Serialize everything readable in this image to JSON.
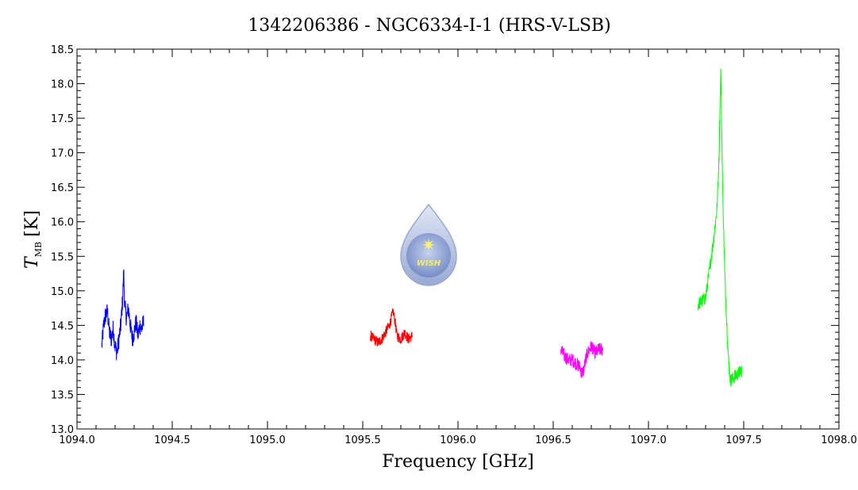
{
  "chart_data": {
    "type": "line",
    "title": "1342206386 - NGC6334-I-1 (HRS-V-LSB)",
    "xlabel": "Frequency [GHz]",
    "ylabel_main": "T",
    "ylabel_sub": "MB",
    "ylabel_unit": "[K]",
    "xlim": [
      1094.0,
      1098.0
    ],
    "ylim": [
      13.0,
      18.5
    ],
    "xticks": [
      "1094.0",
      "1094.5",
      "1095.0",
      "1095.5",
      "1096.0",
      "1096.5",
      "1097.0",
      "1097.5",
      "1098.0"
    ],
    "yticks": [
      "13.0",
      "13.5",
      "14.0",
      "14.5",
      "15.0",
      "15.5",
      "16.0",
      "16.5",
      "17.0",
      "17.5",
      "18.0",
      "18.5"
    ],
    "grid": false,
    "logo": {
      "text": "WISH"
    },
    "series": [
      {
        "color": "#0000ff",
        "x": [
          1094.13,
          1094.14,
          1094.15,
          1094.16,
          1094.17,
          1094.18,
          1094.19,
          1094.2,
          1094.21,
          1094.22,
          1094.23,
          1094.24,
          1094.245,
          1094.25,
          1094.26,
          1094.27,
          1094.28,
          1094.29,
          1094.3,
          1094.31,
          1094.32,
          1094.33,
          1094.34,
          1094.35
        ],
        "y": [
          14.2,
          14.5,
          14.65,
          14.7,
          14.4,
          14.3,
          14.45,
          14.2,
          14.1,
          14.3,
          14.5,
          14.9,
          15.3,
          14.8,
          14.6,
          14.75,
          14.5,
          14.3,
          14.4,
          14.55,
          14.35,
          14.5,
          14.45,
          14.55
        ],
        "noise": 0.14
      },
      {
        "color": "#ff0000",
        "x": [
          1095.54,
          1095.56,
          1095.58,
          1095.6,
          1095.62,
          1095.64,
          1095.65,
          1095.66,
          1095.67,
          1095.68,
          1095.7,
          1095.72,
          1095.74,
          1095.76
        ],
        "y": [
          14.35,
          14.3,
          14.25,
          14.3,
          14.4,
          14.5,
          14.6,
          14.7,
          14.55,
          14.35,
          14.3,
          14.4,
          14.3,
          14.35
        ],
        "noise": 0.08
      },
      {
        "color": "#ff00ff",
        "x": [
          1096.54,
          1096.56,
          1096.58,
          1096.6,
          1096.62,
          1096.64,
          1096.65,
          1096.66,
          1096.67,
          1096.68,
          1096.7,
          1096.72,
          1096.74,
          1096.76
        ],
        "y": [
          14.15,
          14.05,
          14.0,
          14.0,
          13.95,
          13.9,
          13.8,
          13.85,
          14.0,
          14.1,
          14.2,
          14.1,
          14.15,
          14.15
        ],
        "noise": 0.1
      },
      {
        "color": "#00ff00",
        "x": [
          1097.26,
          1097.28,
          1097.3,
          1097.32,
          1097.34,
          1097.35,
          1097.36,
          1097.37,
          1097.375,
          1097.38,
          1097.385,
          1097.39,
          1097.4,
          1097.41,
          1097.42,
          1097.43,
          1097.45,
          1097.47,
          1097.49
        ],
        "y": [
          14.8,
          14.85,
          14.9,
          15.3,
          15.7,
          15.95,
          16.2,
          16.9,
          17.6,
          18.2,
          17.3,
          16.4,
          15.3,
          14.6,
          14.0,
          13.7,
          13.75,
          13.8,
          13.85
        ],
        "noise": 0.1
      }
    ]
  }
}
